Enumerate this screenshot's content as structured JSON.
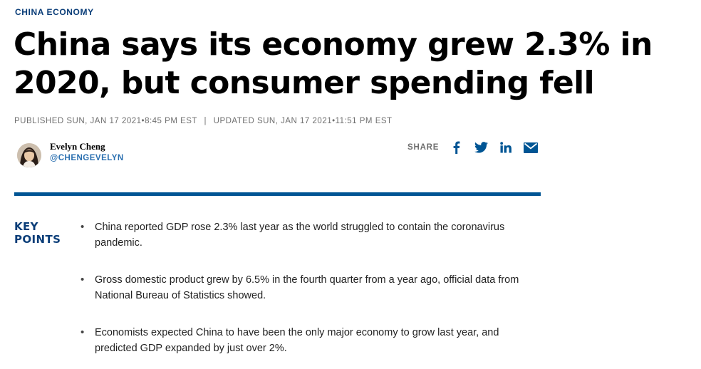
{
  "section_tag": "CHINA ECONOMY",
  "headline": "China says its economy grew 2.3% in 2020, but consumer spending fell",
  "timestamps": {
    "published": "PUBLISHED SUN, JAN 17 2021•8:45 PM EST",
    "separator": "|",
    "updated": "UPDATED SUN, JAN 17 2021•11:51 PM EST"
  },
  "author": {
    "name": "Evelyn Cheng",
    "handle": "@CHENGEVELYN"
  },
  "share": {
    "label": "SHARE",
    "buttons": [
      "facebook-icon",
      "twitter-icon",
      "linkedin-icon",
      "email-icon"
    ]
  },
  "key_points": {
    "title_line1": "KEY",
    "title_line2": "POINTS",
    "bullet": "•",
    "items": [
      "China reported GDP rose 2.3% last year as the world struggled to contain the coronavirus pandemic.",
      "Gross domestic product grew by 6.5% in the fourth quarter from a year ago, official data from National Bureau of Statistics showed.",
      "Economists expected China to have been the only major economy to grow last year, and predicted GDP expanded by just over 2%."
    ]
  },
  "colors": {
    "brand_blue": "#005594",
    "tag_blue": "#0a3d78",
    "handle_blue": "#2a6fb0",
    "muted_gray": "#6f6f6f"
  }
}
